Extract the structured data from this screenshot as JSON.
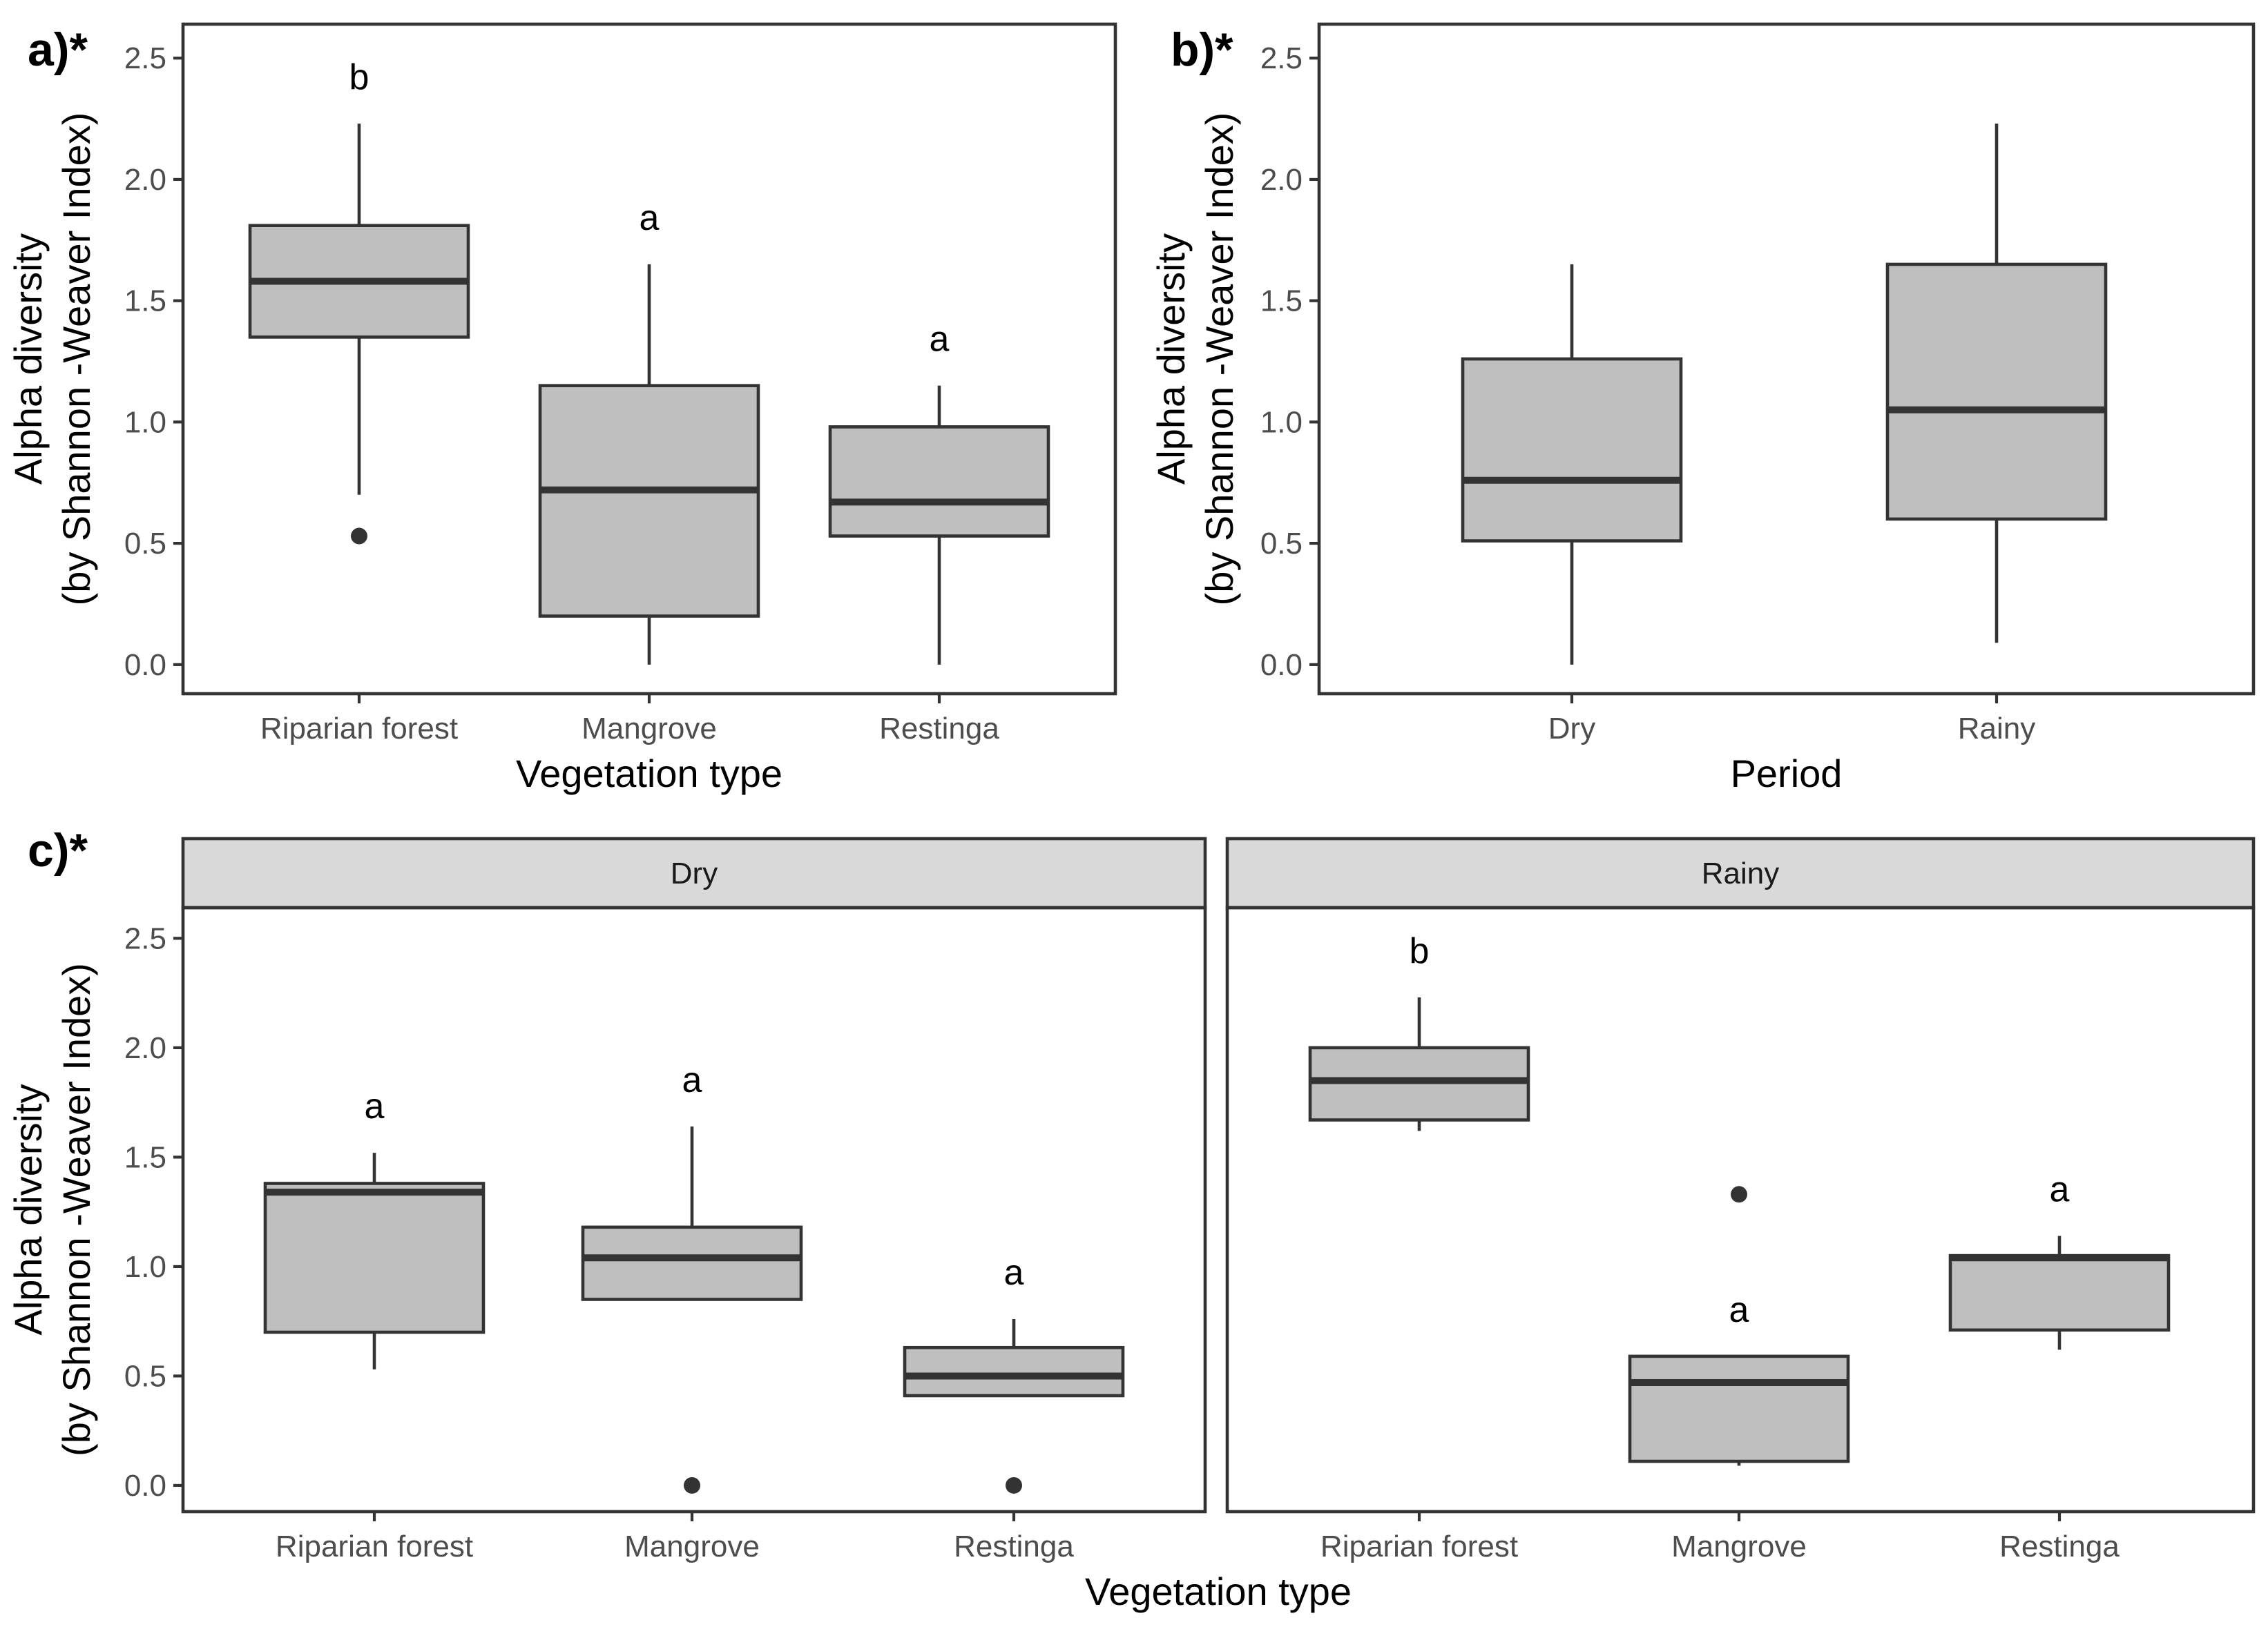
{
  "chart_data": [
    {
      "panel_label": "a)*",
      "type": "boxplot",
      "xlabel": "Vegetation type",
      "ylabel": [
        "Alpha diversity",
        "(by Shannon -Weaver Index)"
      ],
      "ylim": [
        -0.12,
        2.64
      ],
      "yticks": [
        0.0,
        0.5,
        1.0,
        1.5,
        2.0,
        2.5
      ],
      "ytick_labels": [
        "0.0",
        "0.5",
        "1.0",
        "1.5",
        "2.0",
        "2.5"
      ],
      "categories": [
        "Riparian forest",
        "Mangrove",
        "Restinga"
      ],
      "boxes": [
        {
          "lower_whisker": 0.7,
          "q1": 1.35,
          "median": 1.58,
          "q3": 1.81,
          "upper_whisker": 2.23,
          "outliers": [
            0.53
          ],
          "letter": "b"
        },
        {
          "lower_whisker": 0.0,
          "q1": 0.2,
          "median": 0.72,
          "q3": 1.15,
          "upper_whisker": 1.65,
          "outliers": [],
          "letter": "a"
        },
        {
          "lower_whisker": 0.0,
          "q1": 0.53,
          "median": 0.67,
          "q3": 0.98,
          "upper_whisker": 1.15,
          "outliers": [],
          "letter": "a"
        }
      ]
    },
    {
      "panel_label": "b)*",
      "type": "boxplot",
      "xlabel": "Period",
      "ylabel": [
        "Alpha diversity",
        "(by Shannon -Weaver Index)"
      ],
      "ylim": [
        -0.12,
        2.64
      ],
      "yticks": [
        0.0,
        0.5,
        1.0,
        1.5,
        2.0,
        2.5
      ],
      "ytick_labels": [
        "0.0",
        "0.5",
        "1.0",
        "1.5",
        "2.0",
        "2.5"
      ],
      "categories": [
        "Dry",
        "Rainy"
      ],
      "boxes": [
        {
          "lower_whisker": 0.0,
          "q1": 0.51,
          "median": 0.76,
          "q3": 1.26,
          "upper_whisker": 1.65,
          "outliers": [],
          "letter": ""
        },
        {
          "lower_whisker": 0.09,
          "q1": 0.6,
          "median": 1.05,
          "q3": 1.65,
          "upper_whisker": 2.23,
          "outliers": [],
          "letter": ""
        }
      ]
    },
    {
      "panel_label": "c)*",
      "type": "boxplot",
      "xlabel": "Vegetation type",
      "ylabel": [
        "Alpha diversity",
        "(by Shannon -Weaver Index)"
      ],
      "ylim": [
        -0.12,
        2.64
      ],
      "yticks": [
        0.0,
        0.5,
        1.0,
        1.5,
        2.0,
        2.5
      ],
      "ytick_labels": [
        "0.0",
        "0.5",
        "1.0",
        "1.5",
        "2.0",
        "2.5"
      ],
      "facets": [
        {
          "strip": "Dry",
          "categories": [
            "Riparian forest",
            "Mangrove",
            "Restinga"
          ],
          "boxes": [
            {
              "lower_whisker": 0.53,
              "q1": 0.7,
              "median": 1.34,
              "q3": 1.38,
              "upper_whisker": 1.52,
              "outliers": [],
              "letter": "a"
            },
            {
              "lower_whisker": 0.85,
              "q1": 0.85,
              "median": 1.04,
              "q3": 1.18,
              "upper_whisker": 1.64,
              "outliers": [
                0.0
              ],
              "letter": "a"
            },
            {
              "lower_whisker": 0.41,
              "q1": 0.41,
              "median": 0.5,
              "q3": 0.63,
              "upper_whisker": 0.76,
              "outliers": [
                0.0
              ],
              "letter": "a"
            }
          ]
        },
        {
          "strip": "Rainy",
          "categories": [
            "Riparian forest",
            "Mangrove",
            "Restinga"
          ],
          "boxes": [
            {
              "lower_whisker": 1.62,
              "q1": 1.67,
              "median": 1.85,
              "q3": 2.0,
              "upper_whisker": 2.23,
              "outliers": [],
              "letter": "b"
            },
            {
              "lower_whisker": 0.09,
              "q1": 0.11,
              "median": 0.47,
              "q3": 0.59,
              "upper_whisker": 0.59,
              "outliers": [
                1.33
              ],
              "letter": "a"
            },
            {
              "lower_whisker": 0.62,
              "q1": 0.71,
              "median": 1.04,
              "q3": 1.05,
              "upper_whisker": 1.14,
              "outliers": [],
              "letter": "a"
            }
          ]
        }
      ]
    }
  ],
  "colors": {
    "box_fill": "#bfbfbf",
    "box_line": "#333333",
    "strip_fill": "#d9d9d9",
    "background": "#ffffff"
  }
}
